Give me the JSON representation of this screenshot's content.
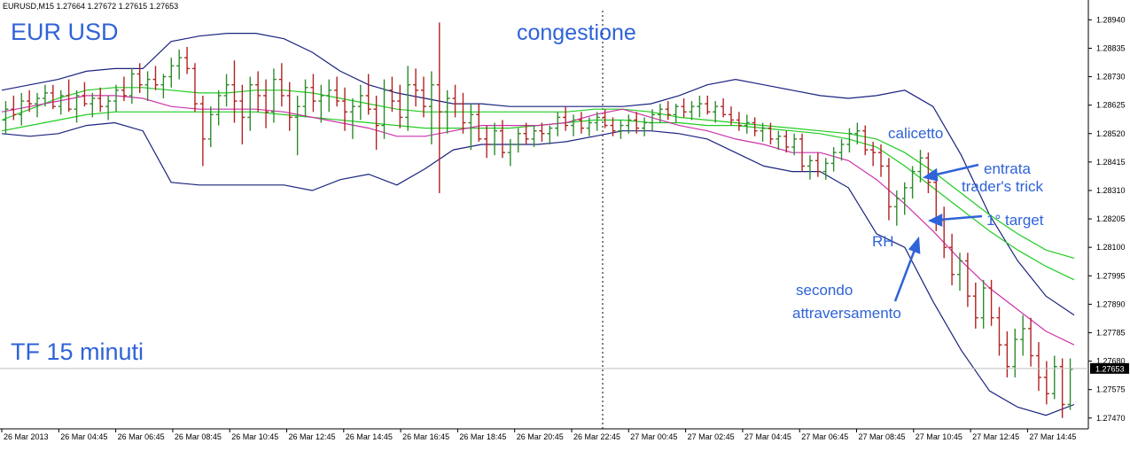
{
  "header": {
    "text": "EURUSD,M15  1.27664 1.27672 1.27615 1.27653"
  },
  "chart_data": {
    "type": "candlestick",
    "symbol": "EURUSD",
    "timeframe": "M15",
    "ohlc_header": {
      "open": 1.27664,
      "high": 1.27672,
      "low": 1.27615,
      "close": 1.27653
    },
    "ylim": [
      1.2743,
      1.29
    ],
    "y_ticks": [
      1.2894,
      1.28835,
      1.2873,
      1.28625,
      1.2852,
      1.28415,
      1.2831,
      1.28205,
      1.281,
      1.27995,
      1.2789,
      1.27785,
      1.2768,
      1.27575,
      1.2747
    ],
    "y_tick_labels": [
      "1.28940",
      "1.28835",
      "1.28730",
      "1.28625",
      "1.28520",
      "1.28415",
      "1.28310",
      "1.28205",
      "1.28100",
      "1.27995",
      "1.27890",
      "1.27785",
      "1.27680",
      "1.27575",
      "1.27470"
    ],
    "x_tick_labels": [
      "26 Mar 2013",
      "26 Mar 04:45",
      "26 Mar 06:45",
      "26 Mar 08:45",
      "26 Mar 10:45",
      "26 Mar 12:45",
      "26 Mar 14:45",
      "26 Mar 16:45",
      "26 Mar 18:45",
      "26 Mar 20:45",
      "26 Mar 22:45",
      "27 Mar 00:45",
      "27 Mar 02:45",
      "27 Mar 04:45",
      "27 Mar 06:45",
      "27 Mar 08:45",
      "27 Mar 10:45",
      "27 Mar 12:45",
      "27 Mar 14:45"
    ],
    "current_price": 1.27653,
    "current_price_label": "1.27653",
    "grid": false,
    "candle_colors": {
      "up": "#2e8b2e",
      "down": "#b22222"
    },
    "bollinger": {
      "color": "#1a237e",
      "upper": [
        1.2868,
        1.287,
        1.2872,
        1.2875,
        1.2876,
        1.2876,
        1.2886,
        1.2888,
        1.2889,
        1.2889,
        1.2887,
        1.2882,
        1.2875,
        1.287,
        1.2867,
        1.2865,
        1.2863,
        1.2863,
        1.2862,
        1.2862,
        1.2862,
        1.2862,
        1.2862,
        1.2863,
        1.2866,
        1.287,
        1.2872,
        1.287,
        1.2868,
        1.2866,
        1.2865,
        1.2866,
        1.2868,
        1.2862,
        1.2844,
        1.2822,
        1.2805,
        1.2792,
        1.2785
      ],
      "lower": [
        1.2852,
        1.2851,
        1.2852,
        1.2855,
        1.2856,
        1.2853,
        1.2834,
        1.2833,
        1.2833,
        1.2833,
        1.2833,
        1.2831,
        1.2835,
        1.2837,
        1.2833,
        1.2839,
        1.2846,
        1.2848,
        1.2848,
        1.2848,
        1.2849,
        1.2851,
        1.2853,
        1.2853,
        1.2852,
        1.285,
        1.2845,
        1.284,
        1.2838,
        1.2838,
        1.2832,
        1.2815,
        1.281,
        1.279,
        1.2772,
        1.2757,
        1.2751,
        1.2748,
        1.2752
      ]
    },
    "sma_fast": {
      "color": "#cc33aa",
      "values": [
        1.286,
        1.2862,
        1.2864,
        1.2866,
        1.2866,
        1.2865,
        1.2862,
        1.2861,
        1.2861,
        1.2861,
        1.286,
        1.2858,
        1.2856,
        1.2854,
        1.2851,
        1.2851,
        1.2853,
        1.2855,
        1.2855,
        1.2855,
        1.2856,
        1.2859,
        1.2861,
        1.2858,
        1.2855,
        1.2853,
        1.285,
        1.2848,
        1.2845,
        1.2845,
        1.2842,
        1.2835,
        1.2826,
        1.2816,
        1.2805,
        1.2795,
        1.2787,
        1.2779,
        1.2774
      ]
    },
    "ema_slow_1": {
      "color": "#22cc22",
      "values": [
        1.2857,
        1.2861,
        1.2865,
        1.2868,
        1.2869,
        1.2869,
        1.2868,
        1.2867,
        1.2867,
        1.2868,
        1.2868,
        1.2867,
        1.2865,
        1.2863,
        1.2861,
        1.286,
        1.286,
        1.286,
        1.286,
        1.286,
        1.286,
        1.2861,
        1.2861,
        1.286,
        1.2858,
        1.2857,
        1.2856,
        1.2855,
        1.2854,
        1.2853,
        1.2852,
        1.285,
        1.2845,
        1.2838,
        1.283,
        1.2822,
        1.2815,
        1.2809,
        1.2806
      ]
    },
    "ema_slow_2": {
      "color": "#22cc22",
      "values": [
        1.2853,
        1.2855,
        1.2857,
        1.2859,
        1.286,
        1.286,
        1.286,
        1.286,
        1.286,
        1.286,
        1.2859,
        1.2858,
        1.2857,
        1.2856,
        1.2855,
        1.2854,
        1.2854,
        1.2854,
        1.2854,
        1.2855,
        1.2856,
        1.2857,
        1.2857,
        1.2856,
        1.2856,
        1.2855,
        1.2855,
        1.2854,
        1.2853,
        1.2852,
        1.285,
        1.2847,
        1.284,
        1.2832,
        1.2824,
        1.2816,
        1.2809,
        1.2803,
        1.2798
      ]
    },
    "candles": [
      [
        1.2857,
        1.2864,
        1.2852,
        1.2861
      ],
      [
        1.2861,
        1.2866,
        1.2857,
        1.2859
      ],
      [
        1.2859,
        1.2867,
        1.2855,
        1.2864
      ],
      [
        1.2864,
        1.2868,
        1.286,
        1.2863
      ],
      [
        1.2863,
        1.2867,
        1.2858,
        1.2865
      ],
      [
        1.2865,
        1.287,
        1.2862,
        1.2867
      ],
      [
        1.2867,
        1.287,
        1.2861,
        1.2862
      ],
      [
        1.2862,
        1.2868,
        1.2859,
        1.2866
      ],
      [
        1.2866,
        1.2872,
        1.286,
        1.2861
      ],
      [
        1.2861,
        1.2868,
        1.2856,
        1.2866
      ],
      [
        1.2866,
        1.2871,
        1.2862,
        1.2863
      ],
      [
        1.2863,
        1.2867,
        1.2858,
        1.2865
      ],
      [
        1.2865,
        1.2869,
        1.286,
        1.2862
      ],
      [
        1.2862,
        1.2866,
        1.2857,
        1.2864
      ],
      [
        1.2864,
        1.287,
        1.286,
        1.2868
      ],
      [
        1.2868,
        1.2873,
        1.2864,
        1.2866
      ],
      [
        1.2866,
        1.2876,
        1.2863,
        1.2874
      ],
      [
        1.2874,
        1.2878,
        1.2867,
        1.287
      ],
      [
        1.287,
        1.2875,
        1.2864,
        1.2872
      ],
      [
        1.2872,
        1.2877,
        1.2868,
        1.287
      ],
      [
        1.287,
        1.2874,
        1.2865,
        1.2873
      ],
      [
        1.2873,
        1.288,
        1.2869,
        1.2877
      ],
      [
        1.2877,
        1.2883,
        1.2872,
        1.288
      ],
      [
        1.288,
        1.2884,
        1.2874,
        1.2876
      ],
      [
        1.2876,
        1.2878,
        1.286,
        1.2863
      ],
      [
        1.2863,
        1.2866,
        1.284,
        1.285
      ],
      [
        1.285,
        1.2862,
        1.2847,
        1.2859
      ],
      [
        1.2859,
        1.2868,
        1.2855,
        1.2866
      ],
      [
        1.2866,
        1.2874,
        1.2862,
        1.287
      ],
      [
        1.287,
        1.2879,
        1.2856,
        1.2864
      ],
      [
        1.2864,
        1.287,
        1.2848,
        1.2858
      ],
      [
        1.2858,
        1.2873,
        1.2853,
        1.287
      ],
      [
        1.287,
        1.2875,
        1.286,
        1.2866
      ],
      [
        1.2866,
        1.2872,
        1.2854,
        1.286
      ],
      [
        1.286,
        1.2876,
        1.2856,
        1.2872
      ],
      [
        1.2872,
        1.2878,
        1.2862,
        1.2866
      ],
      [
        1.2866,
        1.2871,
        1.2853,
        1.2858
      ],
      [
        1.2858,
        1.2866,
        1.2844,
        1.2862
      ],
      [
        1.2862,
        1.2872,
        1.2858,
        1.2869
      ],
      [
        1.2869,
        1.2874,
        1.286,
        1.2864
      ],
      [
        1.2864,
        1.287,
        1.2856,
        1.2866
      ],
      [
        1.2866,
        1.2872,
        1.286,
        1.2868
      ],
      [
        1.2868,
        1.2873,
        1.2862,
        1.2864
      ],
      [
        1.2864,
        1.2869,
        1.2853,
        1.286
      ],
      [
        1.286,
        1.2865,
        1.285,
        1.2862
      ],
      [
        1.2862,
        1.287,
        1.2857,
        1.2866
      ],
      [
        1.2866,
        1.2874,
        1.2859,
        1.2861
      ],
      [
        1.2861,
        1.2866,
        1.2846,
        1.2855
      ],
      [
        1.2855,
        1.2872,
        1.285,
        1.2868
      ],
      [
        1.2868,
        1.2873,
        1.286,
        1.2864
      ],
      [
        1.2864,
        1.287,
        1.2854,
        1.2858
      ],
      [
        1.2858,
        1.2877,
        1.2853,
        1.287
      ],
      [
        1.287,
        1.2876,
        1.2862,
        1.2868
      ],
      [
        1.2868,
        1.2873,
        1.2858,
        1.2862
      ],
      [
        1.2862,
        1.2875,
        1.2848,
        1.287
      ],
      [
        1.287,
        1.2893,
        1.283,
        1.286
      ],
      [
        1.286,
        1.2868,
        1.2852,
        1.2865
      ],
      [
        1.2865,
        1.287,
        1.2858,
        1.2863
      ],
      [
        1.2863,
        1.2867,
        1.2852,
        1.2856
      ],
      [
        1.2856,
        1.2863,
        1.2846,
        1.2859
      ],
      [
        1.2859,
        1.2863,
        1.2849,
        1.285
      ],
      [
        1.285,
        1.2855,
        1.2843,
        1.2848
      ],
      [
        1.2848,
        1.2856,
        1.2844,
        1.2853
      ],
      [
        1.2853,
        1.2857,
        1.2843,
        1.2845
      ],
      [
        1.2845,
        1.285,
        1.284,
        1.2848
      ],
      [
        1.2848,
        1.2854,
        1.2845,
        1.2852
      ],
      [
        1.2852,
        1.2856,
        1.2848,
        1.285
      ],
      [
        1.285,
        1.2855,
        1.2847,
        1.2853
      ],
      [
        1.2853,
        1.2856,
        1.2849,
        1.2852
      ],
      [
        1.2852,
        1.2855,
        1.2848,
        1.2854
      ],
      [
        1.2854,
        1.286,
        1.2851,
        1.2858
      ],
      [
        1.2858,
        1.2862,
        1.2853,
        1.2855
      ],
      [
        1.2855,
        1.2859,
        1.2851,
        1.2857
      ],
      [
        1.2857,
        1.286,
        1.2852,
        1.2854
      ],
      [
        1.2854,
        1.2858,
        1.2851,
        1.2856
      ],
      [
        1.2856,
        1.286,
        1.2853,
        1.2858
      ],
      [
        1.2858,
        1.2861,
        1.2854,
        1.2855
      ],
      [
        1.2855,
        1.2858,
        1.2851,
        1.2853
      ],
      [
        1.2853,
        1.2857,
        1.285,
        1.2855
      ],
      [
        1.2855,
        1.2859,
        1.2852,
        1.2857
      ],
      [
        1.2857,
        1.286,
        1.2852,
        1.2854
      ],
      [
        1.2854,
        1.2858,
        1.2851,
        1.2856
      ],
      [
        1.2856,
        1.2861,
        1.2853,
        1.2859
      ],
      [
        1.2859,
        1.2863,
        1.2856,
        1.2861
      ],
      [
        1.2861,
        1.2864,
        1.2857,
        1.2859
      ],
      [
        1.2859,
        1.2863,
        1.2856,
        1.2862
      ],
      [
        1.2862,
        1.2865,
        1.2858,
        1.286
      ],
      [
        1.286,
        1.2864,
        1.2857,
        1.2862
      ],
      [
        1.2862,
        1.2866,
        1.2858,
        1.2863
      ],
      [
        1.2863,
        1.2866,
        1.2859,
        1.286
      ],
      [
        1.286,
        1.2864,
        1.2856,
        1.2862
      ],
      [
        1.2862,
        1.2865,
        1.2858,
        1.2859
      ],
      [
        1.2859,
        1.2862,
        1.2855,
        1.2857
      ],
      [
        1.2857,
        1.286,
        1.2853,
        1.2855
      ],
      [
        1.2855,
        1.2859,
        1.2852,
        1.2856
      ],
      [
        1.2856,
        1.2858,
        1.2851,
        1.2853
      ],
      [
        1.2853,
        1.2856,
        1.2849,
        1.2854
      ],
      [
        1.2854,
        1.2856,
        1.2848,
        1.285
      ],
      [
        1.285,
        1.2853,
        1.2846,
        1.2851
      ],
      [
        1.2851,
        1.2853,
        1.2845,
        1.2847
      ],
      [
        1.2847,
        1.2852,
        1.2844,
        1.285
      ],
      [
        1.285,
        1.2852,
        1.2838,
        1.284
      ],
      [
        1.284,
        1.2844,
        1.2835,
        1.2842
      ],
      [
        1.2842,
        1.2845,
        1.2836,
        1.2838
      ],
      [
        1.2838,
        1.2843,
        1.2835,
        1.2841
      ],
      [
        1.2841,
        1.2847,
        1.2838,
        1.2845
      ],
      [
        1.2845,
        1.285,
        1.2842,
        1.2848
      ],
      [
        1.2848,
        1.2854,
        1.2845,
        1.2852
      ],
      [
        1.2852,
        1.2856,
        1.2848,
        1.2853
      ],
      [
        1.2853,
        1.2855,
        1.2844,
        1.2846
      ],
      [
        1.2846,
        1.2849,
        1.284,
        1.2845
      ],
      [
        1.2845,
        1.2848,
        1.2836,
        1.284
      ],
      [
        1.284,
        1.2843,
        1.282,
        1.2825
      ],
      [
        1.2825,
        1.2831,
        1.2818,
        1.2828
      ],
      [
        1.2828,
        1.2834,
        1.2822,
        1.2832
      ],
      [
        1.2832,
        1.284,
        1.2828,
        1.2838
      ],
      [
        1.2838,
        1.2846,
        1.2834,
        1.2843
      ],
      [
        1.2843,
        1.2845,
        1.283,
        1.2834
      ],
      [
        1.2834,
        1.2838,
        1.2816,
        1.282
      ],
      [
        1.282,
        1.2825,
        1.2806,
        1.281
      ],
      [
        1.281,
        1.2815,
        1.2796,
        1.28
      ],
      [
        1.28,
        1.2808,
        1.2794,
        1.2805
      ],
      [
        1.2805,
        1.2808,
        1.2788,
        1.2792
      ],
      [
        1.2792,
        1.2797,
        1.278,
        1.2784
      ],
      [
        1.2784,
        1.2798,
        1.278,
        1.2795
      ],
      [
        1.2795,
        1.2798,
        1.2781,
        1.2784
      ],
      [
        1.2784,
        1.2788,
        1.277,
        1.2774
      ],
      [
        1.2774,
        1.2779,
        1.2762,
        1.2766
      ],
      [
        1.2766,
        1.278,
        1.2762,
        1.2776
      ],
      [
        1.2776,
        1.2785,
        1.277,
        1.278
      ],
      [
        1.278,
        1.2784,
        1.2766,
        1.277
      ],
      [
        1.277,
        1.2775,
        1.2757,
        1.2762
      ],
      [
        1.2762,
        1.2768,
        1.2752,
        1.2756
      ],
      [
        1.2756,
        1.277,
        1.2754,
        1.2766
      ],
      [
        1.2766,
        1.2769,
        1.2747,
        1.2752
      ],
      [
        1.2752,
        1.2769,
        1.275,
        1.2765
      ]
    ],
    "annotations": [
      {
        "text": "EUR USD",
        "style": "large"
      },
      {
        "text": "congestione",
        "style": "large"
      },
      {
        "text": "TF 15 minuti",
        "style": "large"
      },
      {
        "text": "calicetto",
        "style": "small"
      },
      {
        "text": "entrata",
        "style": "small"
      },
      {
        "text": "trader's trick",
        "style": "small"
      },
      {
        "text": "1° target",
        "style": "small"
      },
      {
        "text": "RH",
        "style": "small"
      },
      {
        "text": "secondo",
        "style": "small"
      },
      {
        "text": "attraversamento",
        "style": "small"
      }
    ]
  }
}
